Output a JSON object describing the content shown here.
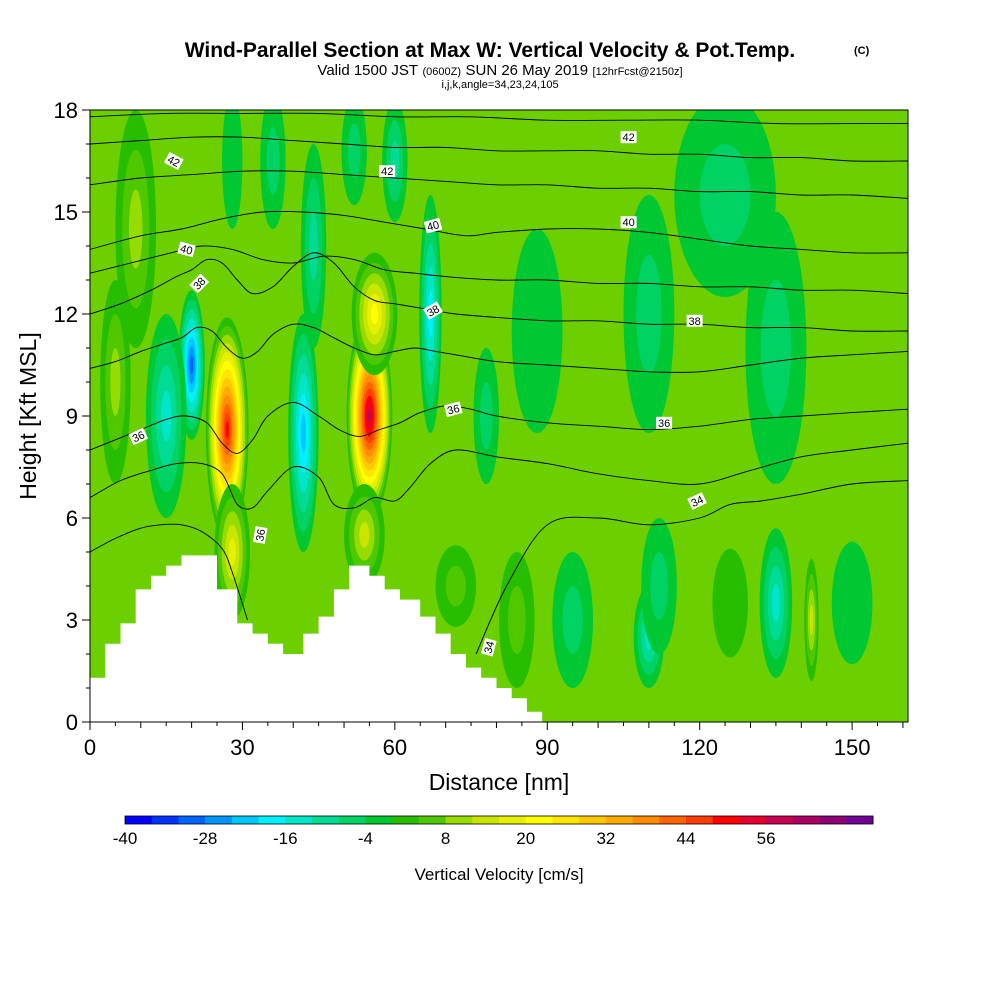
{
  "chart_data": {
    "type": "heatmap",
    "title": "Wind-Parallel Section at Max W: Vertical Velocity & Pot.Temp.",
    "title_tag": "(C)",
    "subtitle_parts": [
      "Valid 1500 JST",
      "(0600Z)",
      "SUN 26 May 2019",
      "[12hrFcst@2150z]"
    ],
    "subtitle2": "i,j,k,angle=34,23,24,105",
    "xlabel": "Distance [nm]",
    "ylabel": "Height [Kft MSL]",
    "xlim": [
      0,
      161
    ],
    "ylim": [
      0,
      18
    ],
    "x_ticks": [
      0,
      30,
      60,
      90,
      120,
      150
    ],
    "x_tick_labels": [
      "0",
      "30",
      "60",
      "90",
      "120",
      "150"
    ],
    "y_ticks": [
      0,
      3,
      6,
      9,
      12,
      15,
      18
    ],
    "y_tick_labels": [
      "0",
      "3",
      "6",
      "9",
      "12",
      "15",
      "18"
    ],
    "colorbar": {
      "label": "Vertical Velocity [cm/s]",
      "min": -40,
      "step": 4,
      "tick_values": [
        -40,
        -28,
        -16,
        -4,
        8,
        20,
        32,
        44,
        56
      ],
      "tick_labels": [
        "-40",
        "-28",
        "-16",
        "-4",
        "8",
        "20",
        "32",
        "44",
        "56"
      ],
      "colors": [
        "#0000ff",
        "#0032ff",
        "#0064ff",
        "#0096ff",
        "#00c8ff",
        "#00f0ff",
        "#00e6c8",
        "#00dc96",
        "#00d264",
        "#00c832",
        "#28be00",
        "#50c800",
        "#96dc00",
        "#c8e600",
        "#e6f000",
        "#ffff00",
        "#ffe600",
        "#ffc800",
        "#ffaa00",
        "#ff8c00",
        "#ff6400",
        "#ff3c00",
        "#ff0000",
        "#e6002d",
        "#c80050",
        "#aa0064",
        "#8c0078",
        "#6e0096"
      ]
    },
    "w_cells": [
      {
        "x": 20,
        "y": 10.5,
        "sx": 2.6,
        "sy": 2.2,
        "w": -34
      },
      {
        "x": 15,
        "y": 9.0,
        "sx": 4.0,
        "sy": 3.0,
        "w": -16
      },
      {
        "x": 9,
        "y": 14.5,
        "sx": 4.0,
        "sy": 3.5,
        "w": 12
      },
      {
        "x": 5,
        "y": 10.0,
        "sx": 3.0,
        "sy": 3.0,
        "w": 14
      },
      {
        "x": 27,
        "y": 8.6,
        "sx": 4.2,
        "sy": 3.3,
        "w": 52
      },
      {
        "x": 28,
        "y": 5.0,
        "sx": 3.5,
        "sy": 2.0,
        "w": 22
      },
      {
        "x": 42,
        "y": 8.5,
        "sx": 3.0,
        "sy": 3.5,
        "w": -24
      },
      {
        "x": 44,
        "y": 14.0,
        "sx": 2.5,
        "sy": 3.0,
        "w": -14
      },
      {
        "x": 36,
        "y": 16.5,
        "sx": 2.5,
        "sy": 2.0,
        "w": -10
      },
      {
        "x": 28,
        "y": 16.5,
        "sx": 2.0,
        "sy": 2.0,
        "w": -6
      },
      {
        "x": 55,
        "y": 9.0,
        "sx": 4.5,
        "sy": 3.0,
        "w": 62
      },
      {
        "x": 56,
        "y": 12.0,
        "sx": 4.5,
        "sy": 1.8,
        "w": 26
      },
      {
        "x": 54,
        "y": 5.5,
        "sx": 4.0,
        "sy": 1.5,
        "w": 16
      },
      {
        "x": 67,
        "y": 12.0,
        "sx": 2.2,
        "sy": 3.5,
        "w": -20
      },
      {
        "x": 60,
        "y": 16.5,
        "sx": 2.5,
        "sy": 1.8,
        "w": -12
      },
      {
        "x": 52,
        "y": 16.8,
        "sx": 2.5,
        "sy": 1.6,
        "w": -8
      },
      {
        "x": 78,
        "y": 9.0,
        "sx": 2.5,
        "sy": 2.0,
        "w": -8
      },
      {
        "x": 72,
        "y": 4.0,
        "sx": 4.0,
        "sy": 1.2,
        "w": 10
      },
      {
        "x": 84,
        "y": 3.0,
        "sx": 3.5,
        "sy": 2.0,
        "w": 8
      },
      {
        "x": 95,
        "y": 3.0,
        "sx": 4.0,
        "sy": 2.0,
        "w": -8
      },
      {
        "x": 110,
        "y": 2.5,
        "sx": 3.0,
        "sy": 1.5,
        "w": -16
      },
      {
        "x": 112,
        "y": 4.0,
        "sx": 3.5,
        "sy": 2.0,
        "w": -8
      },
      {
        "x": 126,
        "y": 3.5,
        "sx": 3.5,
        "sy": 1.6,
        "w": 4
      },
      {
        "x": 135,
        "y": 3.5,
        "sx": 1.4,
        "sy": 1.4,
        "w": -30
      },
      {
        "x": 135,
        "y": 3.5,
        "sx": 3.2,
        "sy": 2.2,
        "w": -16
      },
      {
        "x": 142,
        "y": 3.0,
        "sx": 1.4,
        "sy": 1.8,
        "w": 16
      },
      {
        "x": 150,
        "y": 3.5,
        "sx": 4.0,
        "sy": 1.8,
        "w": -6
      },
      {
        "x": 88,
        "y": 11.5,
        "sx": 5.0,
        "sy": 3.0,
        "w": -6
      },
      {
        "x": 110,
        "y": 12.0,
        "sx": 5.0,
        "sy": 3.5,
        "w": -8
      },
      {
        "x": 135,
        "y": 11.0,
        "sx": 6.0,
        "sy": 4.0,
        "w": -10
      },
      {
        "x": 125,
        "y": 15.5,
        "sx": 10.0,
        "sy": 3.0,
        "w": -9
      }
    ],
    "terrain": {
      "x": [
        0,
        1.5,
        1.5,
        3,
        3,
        6,
        6,
        9,
        9,
        12,
        12,
        15,
        15,
        18,
        18,
        21,
        21,
        25,
        25,
        29,
        29,
        32,
        32,
        35,
        35,
        38,
        38,
        42,
        42,
        45,
        45,
        48,
        48,
        51,
        51,
        55,
        55,
        58,
        58,
        61,
        61,
        65,
        65,
        68,
        68,
        71,
        71,
        74,
        74,
        77,
        77,
        80,
        80,
        83,
        83,
        86,
        86,
        89,
        89
      ],
      "height": [
        1.3,
        1.3,
        1.3,
        1.3,
        2.3,
        2.3,
        2.9,
        2.9,
        3.9,
        3.9,
        4.3,
        4.3,
        4.6,
        4.6,
        4.9,
        4.9,
        4.9,
        4.9,
        3.9,
        3.9,
        2.9,
        2.9,
        2.6,
        2.6,
        2.3,
        2.3,
        2.0,
        2.0,
        2.6,
        2.6,
        3.1,
        3.1,
        3.9,
        3.9,
        4.6,
        4.6,
        4.3,
        4.3,
        3.9,
        3.9,
        3.6,
        3.6,
        3.1,
        3.1,
        2.6,
        2.6,
        2.0,
        2.0,
        1.6,
        1.6,
        1.3,
        1.3,
        1.0,
        1.0,
        0.7,
        0.7,
        0.3,
        0.3,
        0.0
      ]
    },
    "theta_contours": [
      {
        "level": 34,
        "label": "34",
        "x": [
          0,
          5,
          10,
          14,
          18,
          22,
          26,
          28,
          31
        ],
        "height": [
          5.0,
          5.4,
          5.7,
          5.8,
          5.8,
          5.6,
          5.1,
          4.4,
          3.0
        ]
      },
      {
        "level": 34,
        "label": "34",
        "x": [
          76,
          82,
          90,
          100,
          110,
          120,
          126,
          132,
          140,
          150,
          161
        ],
        "height": [
          2.0,
          4.0,
          5.8,
          6.0,
          5.8,
          6.0,
          6.4,
          6.5,
          6.7,
          7.0,
          7.1
        ],
        "label_x": 120,
        "label_y": 6.4
      },
      {
        "level": 35,
        "label": "",
        "x": [
          0,
          6,
          12,
          17,
          22,
          26,
          29,
          32,
          35,
          40,
          45,
          48,
          52,
          56,
          60,
          63,
          67,
          72,
          80,
          90,
          100,
          110,
          120,
          130,
          140,
          150,
          161
        ],
        "height": [
          6.6,
          7.1,
          7.4,
          7.6,
          7.6,
          7.3,
          6.4,
          6.3,
          6.8,
          7.5,
          7.2,
          6.4,
          6.3,
          6.6,
          6.5,
          6.9,
          7.6,
          8.0,
          7.8,
          7.6,
          7.3,
          7.1,
          7.0,
          7.4,
          7.8,
          8.0,
          8.2
        ]
      },
      {
        "level": 36,
        "label": "36",
        "x": [
          0,
          5,
          10,
          15,
          19,
          23,
          26,
          29,
          32,
          35,
          40,
          45,
          49,
          53,
          57,
          61,
          65,
          70,
          75,
          80,
          90,
          100,
          110,
          120,
          130,
          140,
          150,
          161
        ],
        "height": [
          8.0,
          8.3,
          8.6,
          8.9,
          9.0,
          8.8,
          8.2,
          7.9,
          8.3,
          9.0,
          9.4,
          9.0,
          8.6,
          8.4,
          8.6,
          8.8,
          9.1,
          9.3,
          9.2,
          9.0,
          8.8,
          8.7,
          8.6,
          8.7,
          8.9,
          9.0,
          9.1,
          9.2
        ],
        "label_x": 112,
        "label_y": 8.8
      },
      {
        "level": 37,
        "label": "",
        "x": [
          0,
          5,
          10,
          14,
          18,
          21,
          24,
          27,
          30,
          33,
          36,
          40,
          44,
          48,
          52,
          56,
          60,
          64,
          68,
          72,
          80,
          90,
          100,
          110,
          120,
          130,
          140,
          150,
          161
        ],
        "height": [
          10.4,
          10.6,
          10.9,
          11.1,
          11.3,
          11.6,
          11.5,
          11.0,
          10.7,
          10.9,
          11.4,
          11.7,
          11.6,
          11.3,
          11.0,
          10.8,
          10.9,
          11.0,
          10.9,
          10.8,
          10.6,
          10.5,
          10.4,
          10.3,
          10.3,
          10.5,
          10.7,
          10.8,
          10.9
        ]
      },
      {
        "level": 38,
        "label": "38",
        "x": [
          0,
          6,
          12,
          17,
          20,
          23,
          26,
          29,
          32,
          36,
          40,
          44,
          48,
          52,
          56,
          60,
          64,
          68,
          72,
          80,
          90,
          100,
          110,
          120,
          130,
          140,
          150,
          161
        ],
        "height": [
          12.0,
          12.3,
          12.7,
          13.1,
          13.3,
          13.6,
          13.5,
          13.0,
          12.6,
          12.8,
          13.4,
          13.8,
          13.5,
          12.8,
          12.4,
          12.3,
          12.2,
          12.1,
          12.0,
          11.9,
          11.8,
          11.8,
          11.7,
          11.7,
          11.6,
          11.6,
          11.5,
          11.5
        ],
        "label_x": 118,
        "label_y": 11.75
      },
      {
        "level": 39,
        "label": "",
        "x": [
          0,
          8,
          16,
          22,
          28,
          34,
          40,
          46,
          52,
          58,
          64,
          70,
          80,
          90,
          100,
          110,
          120,
          130,
          140,
          150,
          161
        ],
        "height": [
          13.2,
          13.5,
          13.8,
          14.0,
          13.9,
          13.6,
          13.5,
          13.7,
          13.6,
          13.3,
          13.2,
          13.1,
          13.0,
          13.0,
          12.9,
          12.9,
          12.8,
          12.8,
          12.7,
          12.7,
          12.6
        ]
      },
      {
        "level": 40,
        "label": "40",
        "x": [
          0,
          10,
          18,
          26,
          34,
          42,
          50,
          58,
          66,
          74,
          80,
          90,
          100,
          110,
          120,
          130,
          140,
          150,
          161
        ],
        "height": [
          13.9,
          14.3,
          14.5,
          14.8,
          15.0,
          15.0,
          14.9,
          14.7,
          14.5,
          14.3,
          14.4,
          14.5,
          14.5,
          14.4,
          14.2,
          14.0,
          13.9,
          13.8,
          13.8
        ],
        "label_x": 106,
        "label_y": 14.4
      },
      {
        "level": 41,
        "label": "",
        "x": [
          0,
          10,
          20,
          30,
          40,
          50,
          60,
          70,
          80,
          90,
          100,
          110,
          120,
          130,
          140,
          150,
          161
        ],
        "height": [
          15.8,
          16.0,
          16.1,
          16.2,
          16.2,
          16.1,
          16.0,
          15.9,
          15.8,
          15.8,
          15.7,
          15.7,
          15.6,
          15.6,
          15.5,
          15.5,
          15.4
        ]
      },
      {
        "level": 42,
        "label": "42",
        "x": [
          0,
          10,
          20,
          30,
          40,
          50,
          60,
          70,
          80,
          90,
          100,
          110,
          120,
          130,
          140,
          150,
          161
        ],
        "height": [
          17.0,
          17.1,
          17.2,
          17.2,
          17.1,
          17.0,
          16.9,
          16.9,
          16.8,
          16.8,
          16.8,
          16.7,
          16.7,
          16.6,
          16.6,
          16.5,
          16.5
        ],
        "label_x": 106,
        "label_y": 16.8
      },
      {
        "level": 43,
        "label": "",
        "x": [
          0,
          15,
          30,
          45,
          60,
          75,
          90,
          105,
          120,
          135,
          150,
          161
        ],
        "height": [
          17.8,
          17.9,
          17.9,
          17.9,
          17.8,
          17.8,
          17.7,
          17.7,
          17.7,
          17.6,
          17.6,
          17.6
        ]
      }
    ],
    "theta_labels": [
      {
        "text": "42",
        "x": 16.5,
        "y": 16.5,
        "rot": 28
      },
      {
        "text": "42",
        "x": 58.5,
        "y": 16.2,
        "rot": 0
      },
      {
        "text": "42",
        "x": 106,
        "y": 17.2,
        "rot": 0
      },
      {
        "text": "40",
        "x": 19,
        "y": 13.9,
        "rot": 15
      },
      {
        "text": "40",
        "x": 67.5,
        "y": 14.6,
        "rot": -15
      },
      {
        "text": "40",
        "x": 106,
        "y": 14.7,
        "rot": 0
      },
      {
        "text": "38",
        "x": 21.5,
        "y": 12.9,
        "rot": -45
      },
      {
        "text": "38",
        "x": 67.5,
        "y": 12.1,
        "rot": -30
      },
      {
        "text": "38",
        "x": 119,
        "y": 11.8,
        "rot": 0
      },
      {
        "text": "36",
        "x": 9.5,
        "y": 8.4,
        "rot": -25
      },
      {
        "text": "36",
        "x": 71.5,
        "y": 9.2,
        "rot": -15
      },
      {
        "text": "36",
        "x": 113,
        "y": 8.8,
        "rot": 0
      },
      {
        "text": "36",
        "x": 33.5,
        "y": 5.5,
        "rot": -80
      },
      {
        "text": "34",
        "x": 78.5,
        "y": 2.2,
        "rot": -75
      },
      {
        "text": "34",
        "x": 119.5,
        "y": 6.5,
        "rot": -25
      }
    ]
  }
}
